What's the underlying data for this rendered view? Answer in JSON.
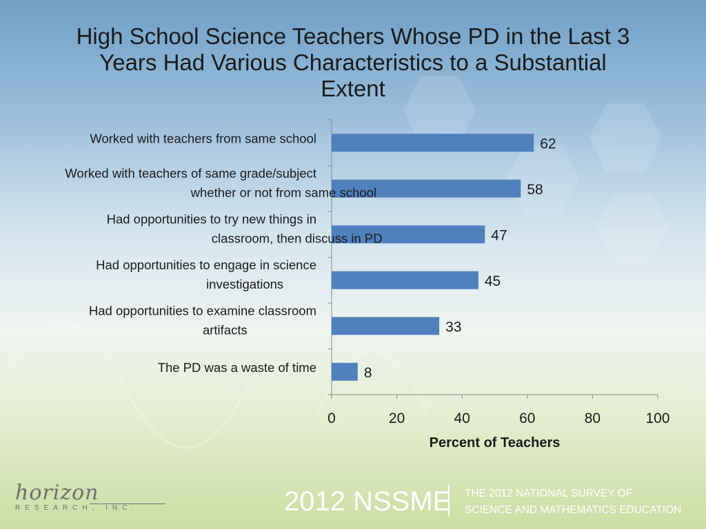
{
  "title_lines": [
    "High School Science Teachers Whose PD in the Last 3",
    "Years Had Various Characteristics to a Substantial",
    "Extent"
  ],
  "chart_data": {
    "type": "bar",
    "orientation": "horizontal",
    "categories": [
      [
        "Worked with teachers from same school"
      ],
      [
        "Worked with teachers of same grade/subject",
        "whether or not from same school"
      ],
      [
        "Had opportunities to try new things in",
        "classroom, then discuss in PD"
      ],
      [
        "Had opportunities to engage in science",
        "investigations"
      ],
      [
        "Had opportunities to examine classroom",
        "artifacts"
      ],
      [
        "The PD was a waste of time"
      ]
    ],
    "values": [
      62,
      58,
      47,
      45,
      33,
      8
    ],
    "data_labels": [
      "62",
      "58",
      "47",
      "45",
      "33",
      "8"
    ],
    "xlabel": "Percent of Teachers",
    "xlim": [
      0,
      100
    ],
    "xticks": [
      "0",
      "20",
      "40",
      "60",
      "80",
      "100"
    ],
    "bar_color": "#4f81bd",
    "grid": false,
    "legend": "none"
  },
  "footer": {
    "brand": "2012 NSSME",
    "subtitle_lines": [
      "THE 2012 NATIONAL SURVEY OF",
      "SCIENCE AND MATHEMATICS EDUCATION"
    ]
  },
  "logo": {
    "name": "horizon",
    "tagline": "RESEARCH, INC."
  }
}
